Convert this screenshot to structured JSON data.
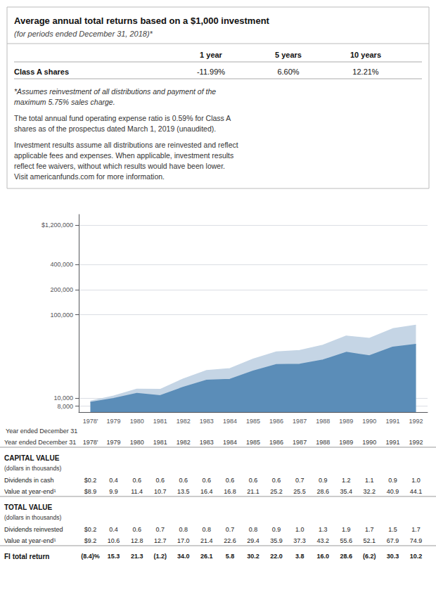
{
  "chart_data": {
    "type": "area",
    "title": "Average annual total returns based on a $1,000 investment",
    "subtitle": "(for periods ended December 31, 2018)*",
    "summary": {
      "columns": [
        "1 year",
        "5 years",
        "10 years"
      ],
      "rows": [
        {
          "label": "Class A shares",
          "values": [
            "-11.99%",
            "6.60%",
            "12.21%"
          ]
        }
      ]
    },
    "notes": [
      "*Assumes reinvestment of all distributions and payment of the\nmaximum 5.75% sales charge.",
      "The total annual fund operating expense ratio is 0.59% for Class A\nshares as of the prospectus dated March 1, 2019 (unaudited).",
      "Investment results assume all distributions are reinvested and reflect\napplicable fees and expenses. When applicable, investment results\nreflect fee waivers, without which results would have been lower.\nVisit americanfunds.com for more information."
    ],
    "xlabel": "Year ended December 31",
    "categories": [
      "1978ʹ",
      "1979",
      "1980",
      "1981",
      "1982",
      "1983",
      "1984",
      "1985",
      "1986",
      "1987",
      "1988",
      "1989",
      "1990",
      "1991",
      "1992"
    ],
    "series": [
      {
        "color": "#5b8db8",
        "values": [
          8900,
          9900,
          11400,
          10700,
          13500,
          16400,
          16800,
          21100,
          25200,
          25500,
          28600,
          35400,
          32200,
          40900,
          44100
        ]
      },
      {
        "color": "#c5d5e5",
        "values": [
          9200,
          10600,
          12800,
          12700,
          17000,
          21400,
          22600,
          29400,
          35900,
          37300,
          43200,
          55600,
          52100,
          67900,
          74900
        ]
      }
    ],
    "log": "y",
    "ylim": [
      6800,
      1600000
    ],
    "yticks": [
      {
        "value": 8000,
        "label": "8,000"
      },
      {
        "value": 10000,
        "label": "10,000"
      },
      {
        "value": 100000,
        "label": "100,000"
      },
      {
        "value": 200000,
        "label": "200,000"
      },
      {
        "value": 400000,
        "label": "400,000"
      },
      {
        "value": 1200000,
        "label": "$1,200,000"
      }
    ],
    "grid": true,
    "table": {
      "sections": [
        {
          "title": "CAPITAL VALUE",
          "subtitle": "(dollars in thousands)",
          "rows": [
            {
              "label": "Dividends in cash",
              "cells": [
                "$0.2",
                "0.4",
                "0.6",
                "0.6",
                "0.6",
                "0.6",
                "0.6",
                "0.6",
                "0.6",
                "0.7",
                "0.9",
                "1.2",
                "1.1",
                "0.9",
                "1.0"
              ]
            },
            {
              "label": "Value at year-end¹",
              "cells": [
                "$8.9",
                "9.9",
                "11.4",
                "10.7",
                "13.5",
                "16.4",
                "16.8",
                "21.1",
                "25.2",
                "25.5",
                "28.6",
                "35.4",
                "32.2",
                "40.9",
                "44.1"
              ]
            }
          ]
        },
        {
          "title": "TOTAL VALUE",
          "subtitle": "(dollars in thousands)",
          "rows": [
            {
              "label": "Dividends reinvested",
              "cells": [
                "$0.2",
                "0.4",
                "0.6",
                "0.7",
                "0.8",
                "0.8",
                "0.7",
                "0.8",
                "0.9",
                "1.0",
                "1.3",
                "1.9",
                "1.7",
                "1.5",
                "1.7"
              ]
            },
            {
              "label": "Value at year-end¹",
              "cells": [
                "$9.2",
                "10.6",
                "12.8",
                "12.7",
                "17.0",
                "21.4",
                "22.6",
                "29.4",
                "35.9",
                "37.3",
                "43.2",
                "55.6",
                "52.1",
                "67.9",
                "74.9"
              ]
            }
          ]
        }
      ],
      "footer": {
        "label": "FI total return",
        "cells": [
          "(8.4)%",
          "15.3",
          "21.3",
          "(1.2)",
          "34.0",
          "26.1",
          "5.8",
          "30.2",
          "22.0",
          "3.8",
          "16.0",
          "28.6",
          "(6.2)",
          "30.3",
          "10.2"
        ]
      }
    }
  }
}
